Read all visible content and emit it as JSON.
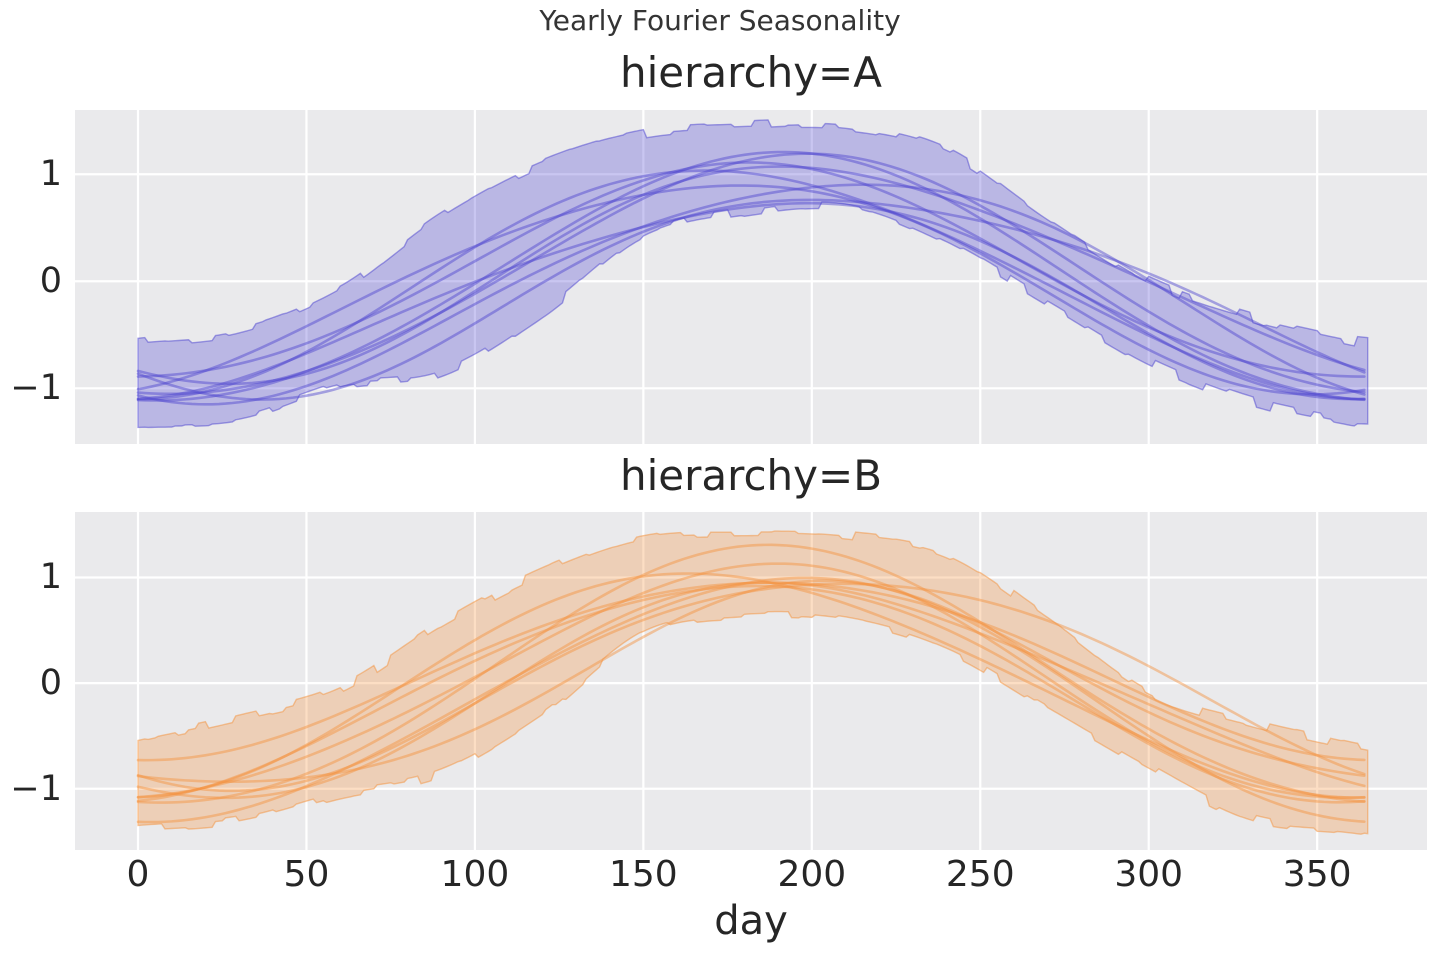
{
  "figure": {
    "suptitle": "Yearly Fourier Seasonality",
    "xlabel": "day"
  },
  "colors": {
    "page_background": "#ffffff",
    "axes_background": "#eaeaec",
    "gridline": "#ffffff",
    "text": "#262626",
    "hierarchy_A": "#4c43cf",
    "hierarchy_B": "#f4913c"
  },
  "chart_data": [
    {
      "type": "line",
      "title": "hierarchy=A",
      "xlabel": "day",
      "color": "#4c43cf",
      "grid": true,
      "x_range_days": [
        0,
        365
      ],
      "xlim": [
        -18.7,
        382.6
      ],
      "ylim": [
        -1.52,
        1.6
      ],
      "x_ticks": [
        0,
        50,
        100,
        150,
        200,
        250,
        300,
        350
      ],
      "y_ticks": [
        1,
        0,
        -1
      ],
      "n_sample_lines": 9,
      "band": {
        "days": [
          0,
          30,
          60,
          90,
          120,
          150,
          180,
          210,
          240,
          270,
          300,
          330,
          360,
          365
        ],
        "upper": [
          -0.57,
          -0.46,
          -0.08,
          0.6,
          1.1,
          1.38,
          1.45,
          1.45,
          1.22,
          0.58,
          0.0,
          -0.33,
          -0.55,
          -0.57
        ],
        "lower": [
          -1.33,
          -1.28,
          -0.98,
          -0.85,
          -0.3,
          0.42,
          0.65,
          0.7,
          0.35,
          -0.2,
          -0.75,
          -1.12,
          -1.33,
          -1.34
        ]
      },
      "lines": [
        {
          "offset": 0.02,
          "amplitude": 1.12,
          "peak_day": 196,
          "h2_amplitude": 0.06,
          "h2_peak_day": 30
        },
        {
          "offset": -0.04,
          "amplitude": 1.02,
          "peak_day": 207,
          "h2_amplitude": 0.1,
          "h2_peak_day": 100
        },
        {
          "offset": 0.06,
          "amplitude": 1.0,
          "peak_day": 181,
          "h2_amplitude": 0.05,
          "h2_peak_day": 0
        },
        {
          "offset": -0.08,
          "amplitude": 0.92,
          "peak_day": 213,
          "h2_amplitude": 0.12,
          "h2_peak_day": 140
        },
        {
          "offset": -0.02,
          "amplitude": 0.97,
          "peak_day": 171,
          "h2_amplitude": 0.08,
          "h2_peak_day": 60
        },
        {
          "offset": 0.0,
          "amplitude": 1.16,
          "peak_day": 190,
          "h2_amplitude": 0.05,
          "h2_peak_day": 200
        },
        {
          "offset": 0.08,
          "amplitude": 1.0,
          "peak_day": 201,
          "h2_amplitude": 0.09,
          "h2_peak_day": 330
        },
        {
          "offset": -0.13,
          "amplitude": 0.9,
          "peak_day": 186,
          "h2_amplitude": 0.1,
          "h2_peak_day": 250
        },
        {
          "offset": -0.01,
          "amplitude": 1.06,
          "peak_day": 176,
          "h2_amplitude": 0.07,
          "h2_peak_day": 120
        }
      ]
    },
    {
      "type": "line",
      "title": "hierarchy=B",
      "xlabel": "day",
      "color": "#f4913c",
      "grid": true,
      "x_range_days": [
        0,
        365
      ],
      "xlim": [
        -18.7,
        382.6
      ],
      "ylim": [
        -1.58,
        1.62
      ],
      "x_ticks": [
        0,
        50,
        100,
        150,
        200,
        250,
        300,
        350
      ],
      "y_ticks": [
        1,
        0,
        -1
      ],
      "n_sample_lines": 9,
      "band": {
        "days": [
          0,
          30,
          60,
          90,
          120,
          150,
          180,
          210,
          240,
          270,
          300,
          330,
          360,
          365
        ],
        "upper": [
          -0.53,
          -0.32,
          -0.05,
          0.55,
          1.05,
          1.38,
          1.43,
          1.4,
          1.22,
          0.6,
          -0.08,
          -0.38,
          -0.6,
          -0.63
        ],
        "lower": [
          -1.38,
          -1.3,
          -1.05,
          -0.85,
          -0.3,
          0.45,
          0.62,
          0.58,
          0.3,
          -0.25,
          -0.8,
          -1.28,
          -1.4,
          -1.42
        ]
      },
      "lines": [
        {
          "offset": 0.16,
          "amplitude": 0.84,
          "peak_day": 186,
          "h2_amplitude": 0.05,
          "h2_peak_day": 90
        },
        {
          "offset": -0.02,
          "amplitude": 1.1,
          "peak_day": 184,
          "h2_amplitude": 0.08,
          "h2_peak_day": 30
        },
        {
          "offset": -0.06,
          "amplitude": 1.0,
          "peak_day": 198,
          "h2_amplitude": 0.1,
          "h2_peak_day": 150
        },
        {
          "offset": 0.03,
          "amplitude": 1.22,
          "peak_day": 188,
          "h2_amplitude": 0.06,
          "h2_peak_day": 0
        },
        {
          "offset": -0.1,
          "amplitude": 0.95,
          "peak_day": 205,
          "h2_amplitude": 0.12,
          "h2_peak_day": 200
        },
        {
          "offset": 0.0,
          "amplitude": 1.05,
          "peak_day": 172,
          "h2_amplitude": 0.08,
          "h2_peak_day": 300
        },
        {
          "offset": -0.15,
          "amplitude": 1.15,
          "peak_day": 192,
          "h2_amplitude": 0.06,
          "h2_peak_day": 60
        },
        {
          "offset": 0.05,
          "amplitude": 0.98,
          "peak_day": 210,
          "h2_amplitude": 0.09,
          "h2_peak_day": 120
        },
        {
          "offset": -0.05,
          "amplitude": 1.02,
          "peak_day": 178,
          "h2_amplitude": 0.07,
          "h2_peak_day": 250
        }
      ]
    }
  ]
}
